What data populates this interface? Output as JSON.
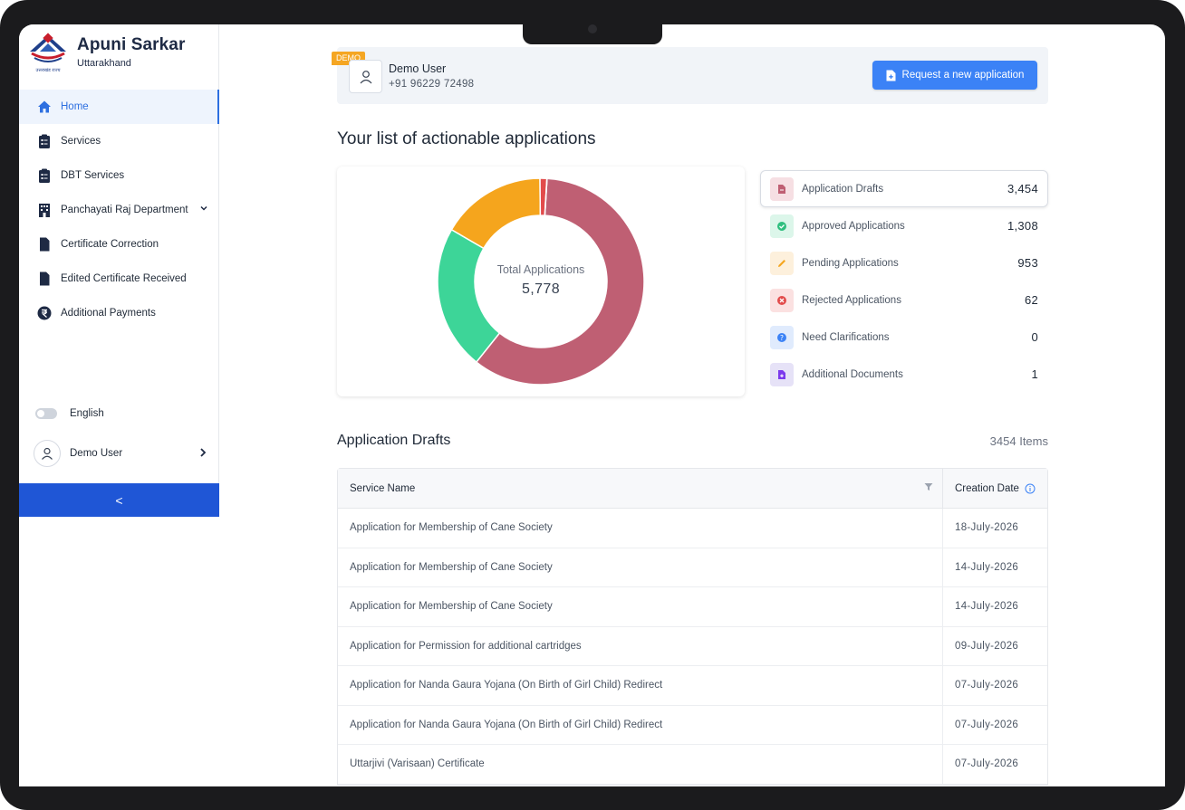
{
  "brand": {
    "title": "Apuni Sarkar",
    "subtitle": "Uttarakhand",
    "logo_caption": "उत्तराखंड राज्य"
  },
  "sidebar": {
    "items": [
      {
        "label": "Home",
        "icon": "home-icon",
        "active": true
      },
      {
        "label": "Services",
        "icon": "clipboard-icon"
      },
      {
        "label": "DBT Services",
        "icon": "clipboard-icon"
      },
      {
        "label": "Panchayati Raj Department",
        "icon": "building-icon",
        "expandable": true
      },
      {
        "label": "Certificate Correction",
        "icon": "document-icon"
      },
      {
        "label": "Edited Certificate Received",
        "icon": "document-icon"
      },
      {
        "label": "Additional Payments",
        "icon": "rupee-icon"
      }
    ],
    "language_label": "English",
    "user_name": "Demo User",
    "collapse_symbol": "<"
  },
  "user_card": {
    "badge": "DEMO",
    "name": "Demo User",
    "phone": "+91 96229 72498",
    "request_button": "Request a new application"
  },
  "section_title": "Your list of actionable applications",
  "chart_data": {
    "type": "pie",
    "center_label": "Total Applications",
    "center_value": "5,778",
    "series": [
      {
        "name": "Application Drafts",
        "value": 3454,
        "color": "#bf5f73"
      },
      {
        "name": "Approved Applications",
        "value": 1308,
        "color": "#3dd598"
      },
      {
        "name": "Pending Applications",
        "value": 953,
        "color": "#f5a51d"
      },
      {
        "name": "Rejected Applications",
        "value": 62,
        "color": "#e24b4b"
      },
      {
        "name": "Need Clarifications",
        "value": 0,
        "color": "#3b82f6"
      },
      {
        "name": "Additional Documents",
        "value": 1,
        "color": "#7c3aed"
      }
    ]
  },
  "stats": [
    {
      "label": "Application Drafts",
      "value": "3,454",
      "icon": "draft-icon",
      "bg": "#f6dfe3",
      "fg": "#bf5f73"
    },
    {
      "label": "Approved Applications",
      "value": "1,308",
      "icon": "check-icon",
      "bg": "#dcf6ea",
      "fg": "#2fbf7f"
    },
    {
      "label": "Pending Applications",
      "value": "953",
      "icon": "pencil-icon",
      "bg": "#fdf0dc",
      "fg": "#f5a51d"
    },
    {
      "label": "Rejected Applications",
      "value": "62",
      "icon": "x-circle-icon",
      "bg": "#fbe1e1",
      "fg": "#e24b4b"
    },
    {
      "label": "Need Clarifications",
      "value": "0",
      "icon": "question-icon",
      "bg": "#e0ebfd",
      "fg": "#3b82f6"
    },
    {
      "label": "Additional Documents",
      "value": "1",
      "icon": "doc-plus-icon",
      "bg": "#e6e2f7",
      "fg": "#7c3aed"
    }
  ],
  "drafts": {
    "title": "Application Drafts",
    "count": "3454 Items",
    "columns": {
      "name": "Service Name",
      "date": "Creation Date"
    },
    "rows": [
      {
        "name": "Application for Membership of Cane Society",
        "date": "18-July-2026"
      },
      {
        "name": "Application for Membership of Cane Society",
        "date": "14-July-2026"
      },
      {
        "name": "Application for Membership of Cane Society",
        "date": "14-July-2026"
      },
      {
        "name": "Application for Permission for additional cartridges",
        "date": "09-July-2026"
      },
      {
        "name": "Application for Nanda Gaura Yojana (On Birth of Girl Child) Redirect",
        "date": "07-July-2026"
      },
      {
        "name": "Application for Nanda Gaura Yojana (On Birth of Girl Child) Redirect",
        "date": "07-July-2026"
      },
      {
        "name": "Uttarjivi (Varisaan) Certificate",
        "date": "07-July-2026"
      }
    ]
  }
}
